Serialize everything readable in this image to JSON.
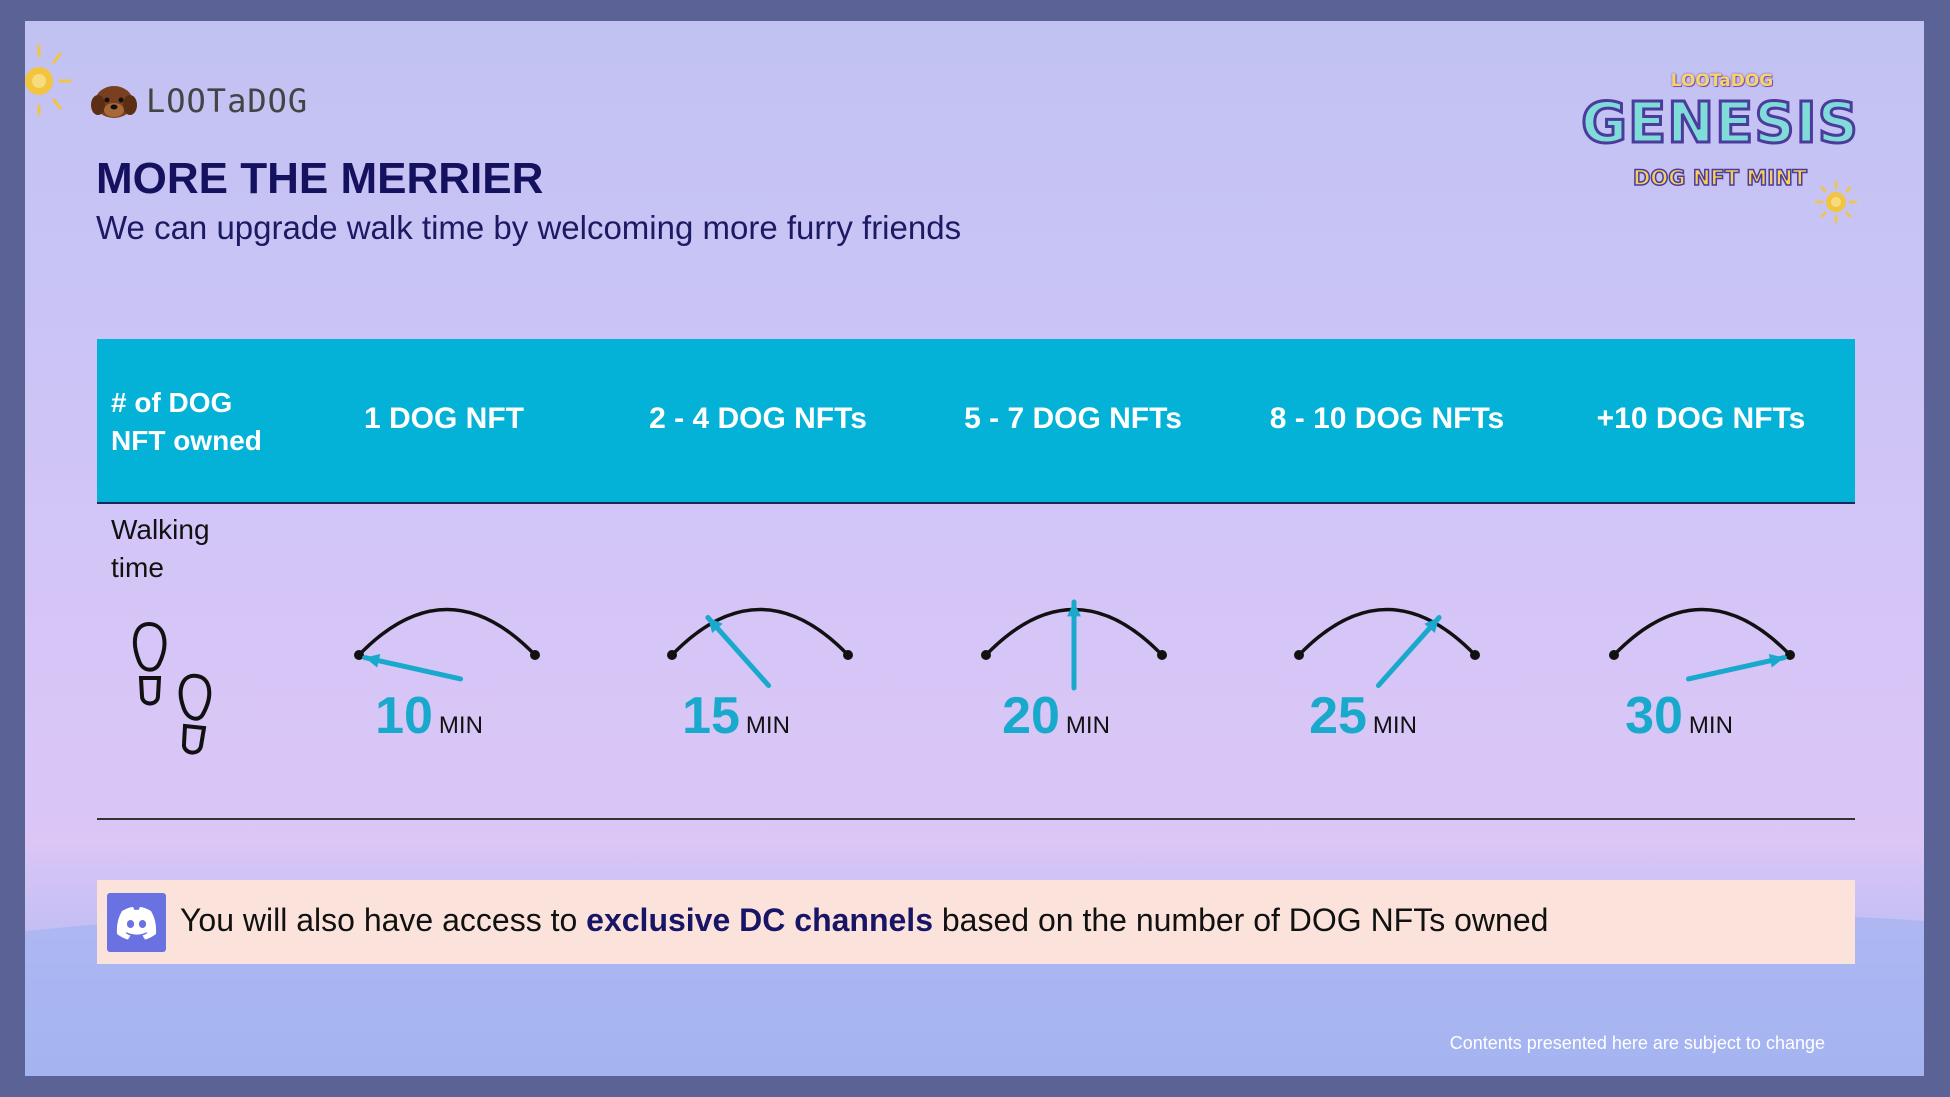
{
  "brand": {
    "name": "LOOTaDOG"
  },
  "header": {
    "title": "MORE THE MERRIER",
    "subtitle": "We can upgrade walk time by welcoming more furry friends"
  },
  "badge": {
    "small": "LOOTaDOG",
    "big": "GENESIS",
    "tag": "DOG NFT MINT"
  },
  "table": {
    "row_header": "# of DOG NFT owned",
    "columns": [
      "1 DOG NFT",
      "2 - 4 DOG NFTs",
      "5 - 7 DOG NFTs",
      "8 - 10 DOG NFTs",
      "+10 DOG NFTs"
    ],
    "walk_label": "Walking time",
    "values": [
      {
        "num": "10",
        "unit": "MIN"
      },
      {
        "num": "15",
        "unit": "MIN"
      },
      {
        "num": "20",
        "unit": "MIN"
      },
      {
        "num": "25",
        "unit": "MIN"
      },
      {
        "num": "30",
        "unit": "MIN"
      }
    ]
  },
  "notice": {
    "text_before": "You will also have access to ",
    "text_bold": "exclusive DC channels",
    "text_after": " based on the number of DOG NFTs owned"
  },
  "footer": {
    "disclaimer": "Contents presented here are subject to change"
  },
  "colors": {
    "accent": "#04b1d7",
    "title": "#14115e",
    "value": "#19a9cc",
    "notice_bg": "#fbe3dc",
    "discord": "#6972e0"
  },
  "icons": [
    "dog-head-icon",
    "sun-icon",
    "footprints-icon",
    "gauge-icon",
    "discord-icon"
  ]
}
